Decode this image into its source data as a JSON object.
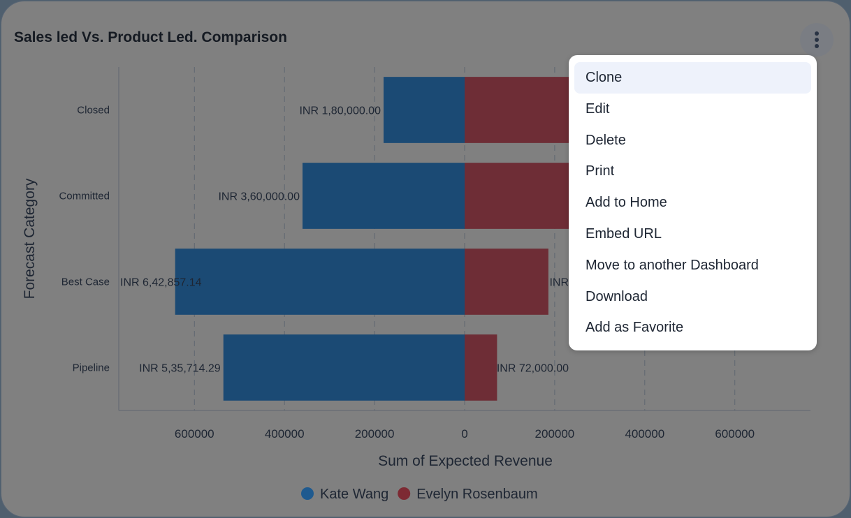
{
  "widget": {
    "title": "Sales led Vs. Product Led. Comparison",
    "more_icon": "vertical-ellipsis-icon"
  },
  "menu": {
    "items": [
      "Clone",
      "Edit",
      "Delete",
      "Print",
      "Add to Home",
      "Embed URL",
      "Move to another Dashboard",
      "Download",
      "Add as Favorite"
    ],
    "active": 0
  },
  "chart_data": {
    "type": "bar",
    "orientation": "horizontal-diverging",
    "title": "Sales led Vs. Product Led. Comparison",
    "xlabel": "Sum of Expected Revenue",
    "ylabel": "Forecast Category",
    "categories": [
      "Closed",
      "Committed",
      "Best Case",
      "Pipeline"
    ],
    "xlim": [
      -768000,
      768000
    ],
    "xticks": [
      -600000,
      -400000,
      -200000,
      0,
      200000,
      400000,
      600000
    ],
    "xtick_labels": [
      "600000",
      "400000",
      "200000",
      "0",
      "200000",
      "400000",
      "600000"
    ],
    "grid": true,
    "legend": "bottom",
    "series": [
      {
        "name": "Kate Wang",
        "color": "#1b4a74",
        "side": "left",
        "values": [
          180000,
          360000,
          642857.14,
          535714.29
        ],
        "labels": [
          "INR 1,80,000.00",
          "INR 3,60,000.00",
          "INR 6,42,857.14",
          "INR 5,35,714.29"
        ]
      },
      {
        "name": "Evelyn Rosenbaum",
        "color": "#6e2d36",
        "side": "right",
        "values": [
          240000,
          240000,
          186000,
          72000
        ],
        "labels": [
          null,
          null,
          "INR",
          "INR 72,000.00"
        ]
      }
    ]
  }
}
